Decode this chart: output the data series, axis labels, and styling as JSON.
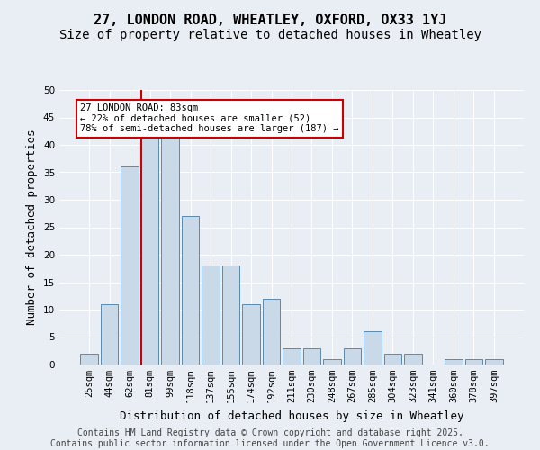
{
  "title_line1": "27, LONDON ROAD, WHEATLEY, OXFORD, OX33 1YJ",
  "title_line2": "Size of property relative to detached houses in Wheatley",
  "xlabel": "Distribution of detached houses by size in Wheatley",
  "ylabel": "Number of detached properties",
  "footer": "Contains HM Land Registry data © Crown copyright and database right 2025.\nContains public sector information licensed under the Open Government Licence v3.0.",
  "categories": [
    "25sqm",
    "44sqm",
    "62sqm",
    "81sqm",
    "99sqm",
    "118sqm",
    "137sqm",
    "155sqm",
    "174sqm",
    "192sqm",
    "211sqm",
    "230sqm",
    "248sqm",
    "267sqm",
    "285sqm",
    "304sqm",
    "323sqm",
    "341sqm",
    "360sqm",
    "378sqm",
    "397sqm"
  ],
  "values": [
    2,
    11,
    36,
    42,
    42,
    27,
    18,
    18,
    11,
    12,
    3,
    3,
    1,
    3,
    6,
    2,
    2,
    0,
    1,
    1,
    1
  ],
  "bar_color": "#c9d9e8",
  "bar_edge_color": "#5a8ab0",
  "vline_bar_index": 3,
  "vline_color": "#cc0000",
  "annotation_text": "27 LONDON ROAD: 83sqm\n← 22% of detached houses are smaller (52)\n78% of semi-detached houses are larger (187) →",
  "annotation_box_facecolor": "#ffffff",
  "annotation_box_edgecolor": "#cc0000",
  "ylim": [
    0,
    50
  ],
  "yticks": [
    0,
    5,
    10,
    15,
    20,
    25,
    30,
    35,
    40,
    45,
    50
  ],
  "bg_color": "#e8eef4",
  "grid_color": "#ffffff",
  "title_fontsize": 11,
  "subtitle_fontsize": 10,
  "axis_label_fontsize": 9,
  "tick_fontsize": 7.5,
  "footer_fontsize": 7
}
